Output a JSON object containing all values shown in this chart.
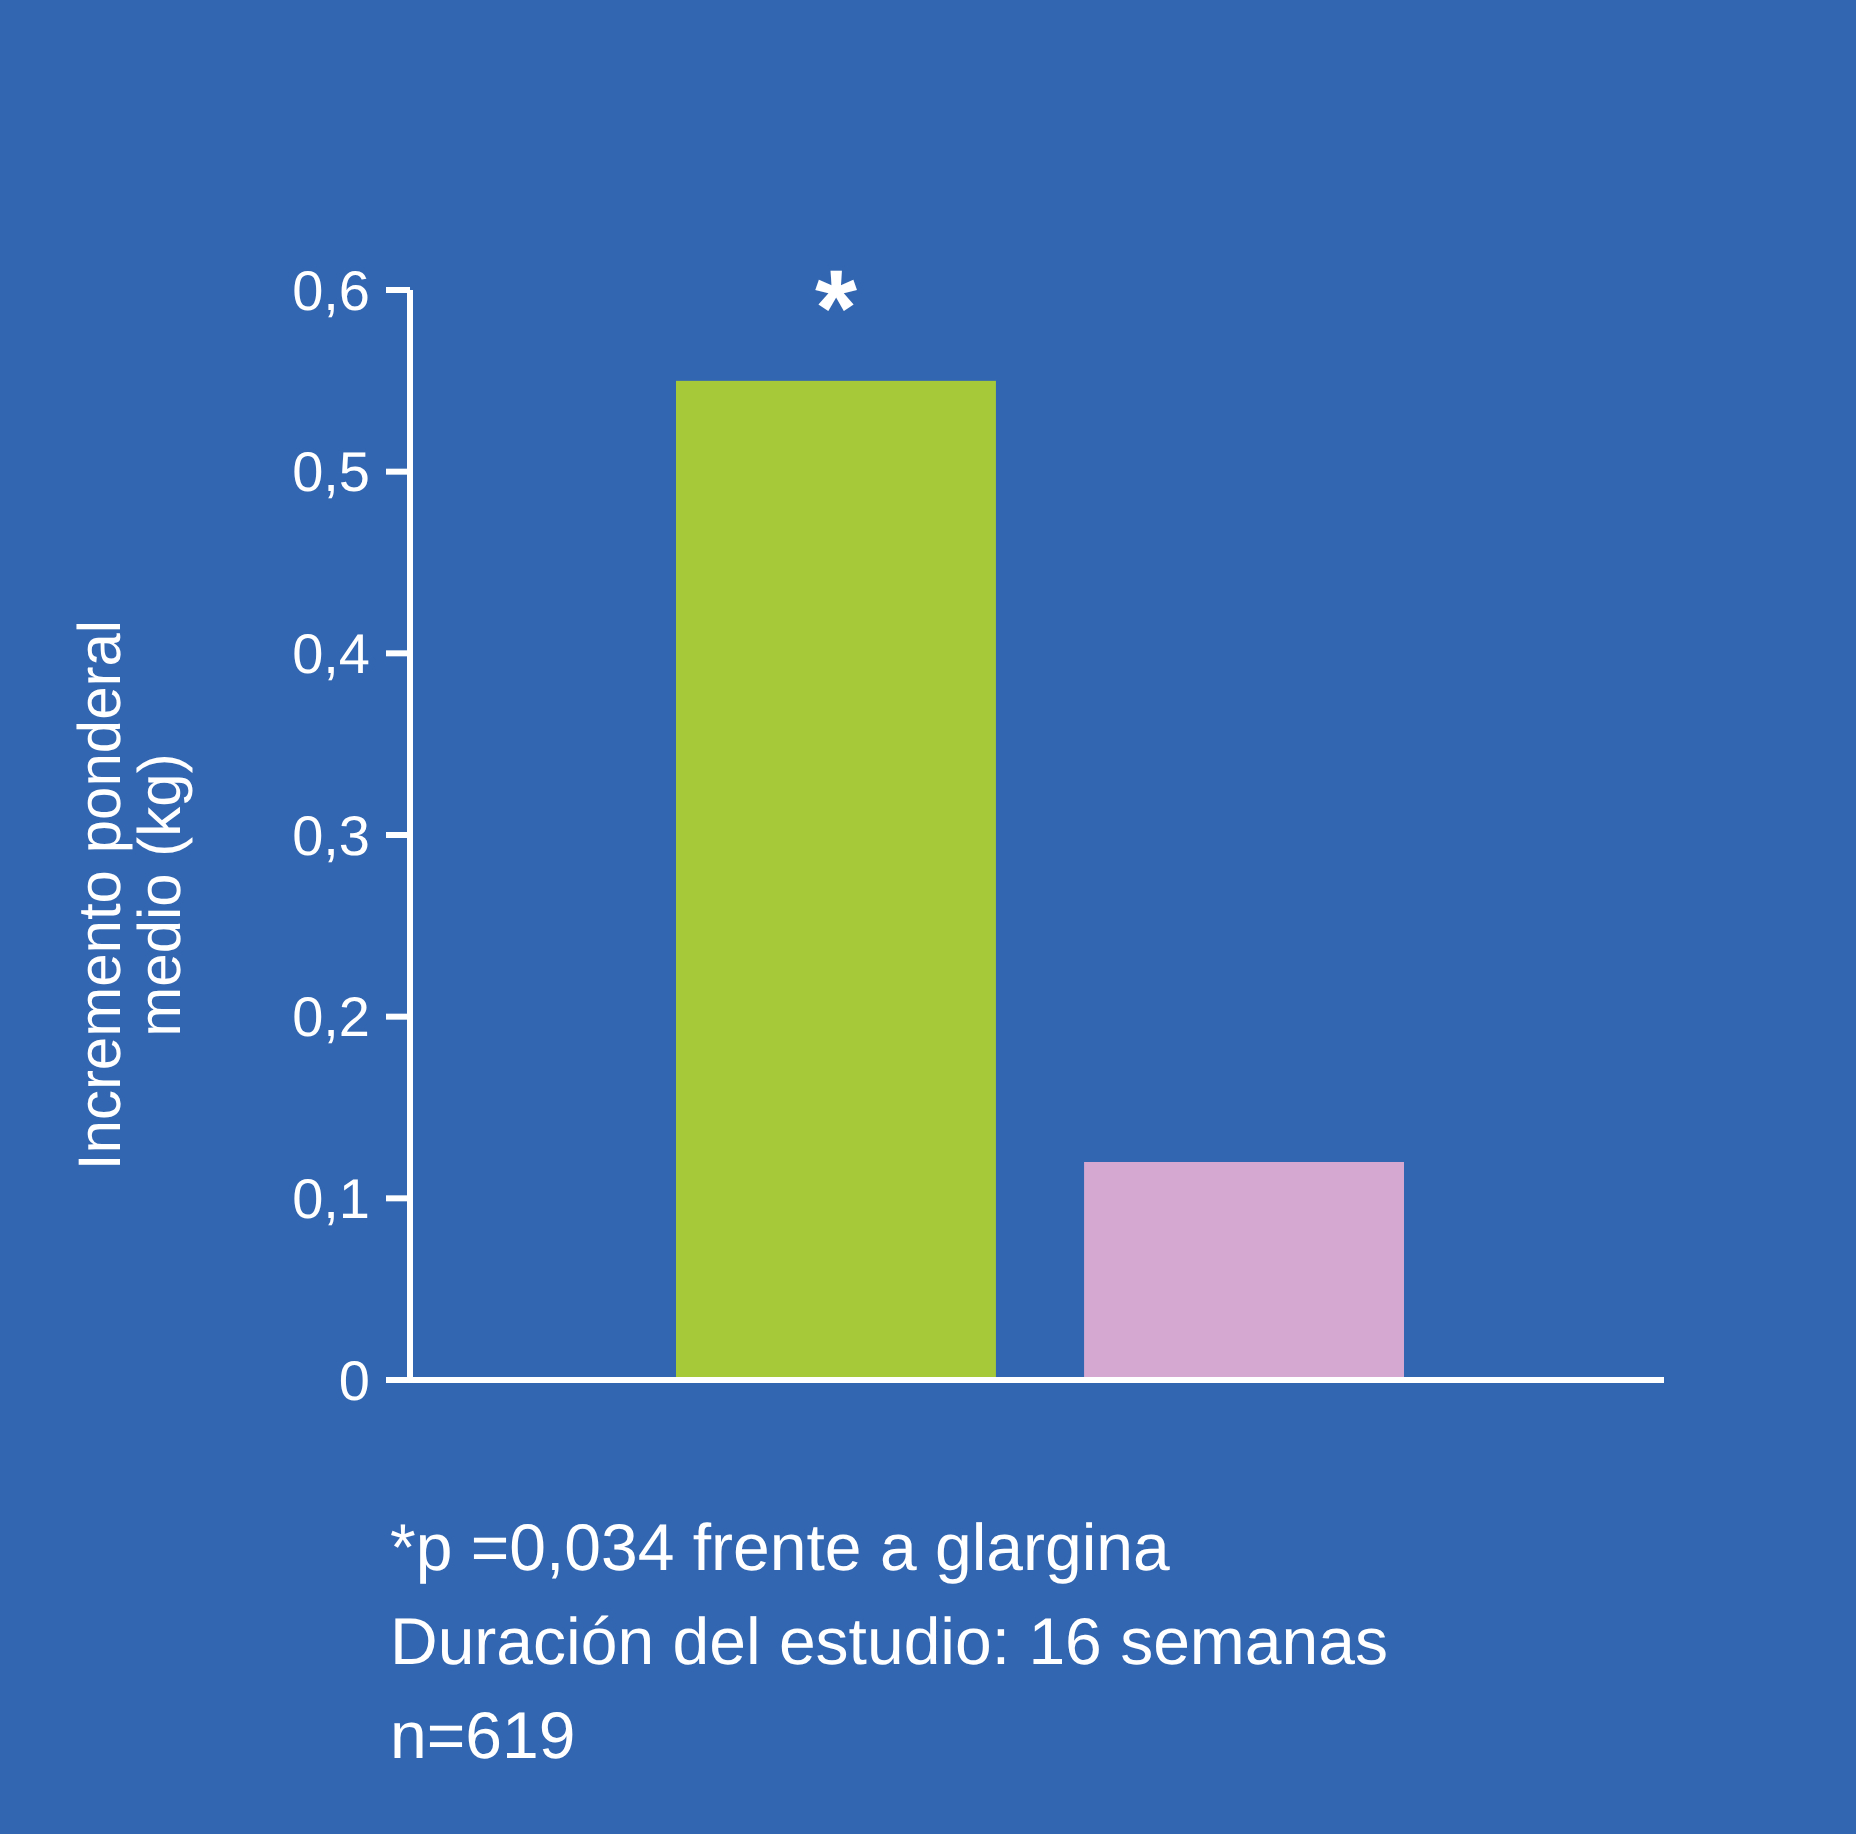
{
  "chart_data": {
    "type": "bar",
    "ylabel": "Incremento ponderal medio (kg)",
    "categories": [
      null,
      null
    ],
    "values": [
      0.55,
      0.12
    ],
    "colors": [
      "#a6c93a",
      "#d4a8d0"
    ],
    "ylim": [
      0,
      0.6
    ],
    "yticks": [
      0,
      {
        "value": 0.1,
        "label": "0,1"
      },
      {
        "value": 0.2,
        "label": "0,2"
      },
      {
        "value": 0.3,
        "label": "0,3"
      },
      {
        "value": 0.4,
        "label": "0,4"
      },
      {
        "value": 0.5,
        "label": "0,5"
      },
      {
        "value": 0.6,
        "label": "0,6"
      }
    ],
    "grid": false,
    "annotations": [
      {
        "text": "*",
        "y": 0.55
      },
      "*p =0,034 frente a glargina",
      "Duración del estudio: 16 semanas",
      "n=619"
    ]
  }
}
